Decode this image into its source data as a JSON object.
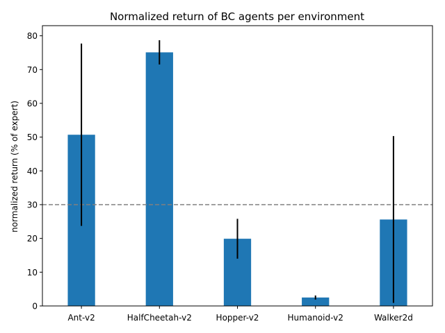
{
  "chart_data": {
    "type": "bar",
    "title": "Normalized return of BC agents per environment",
    "xlabel": "",
    "ylabel": "normalized return (% of expert)",
    "categories": [
      "Ant-v2",
      "HalfCheetah-v2",
      "Hopper-v2",
      "Humanoid-v2",
      "Walker2d"
    ],
    "values": [
      50.7,
      75.1,
      19.9,
      2.5,
      25.6
    ],
    "errors": [
      27.0,
      3.6,
      5.9,
      0.6,
      24.7
    ],
    "ylim": [
      0,
      83
    ],
    "yticks": [
      0,
      10,
      20,
      30,
      40,
      50,
      60,
      70,
      80
    ],
    "reference_line": {
      "value": 30,
      "style": "dashed"
    },
    "grid": false,
    "colors": {
      "bar": "#1f77b4",
      "error_bar": "#000000",
      "reference_line": "#808080",
      "axes": "#000000"
    }
  }
}
